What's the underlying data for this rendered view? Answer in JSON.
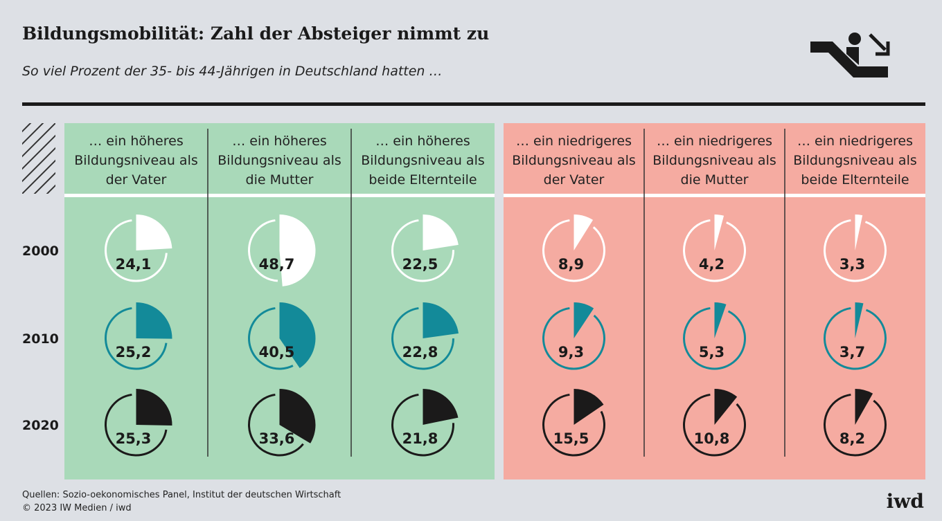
{
  "title": "Bildungsmobilität: Zahl der Absteiger nimmt zu",
  "subtitle": "So viel Prozent der 35- bis 44-Jährigen in Deutschland hatten …",
  "chart_data": {
    "type": "pie",
    "categories": [
      "… ein höheres Bildungsniveau als der Vater",
      "… ein höheres Bildungsniveau als die Mutter",
      "… ein höheres Bildungsniveau als beide Elternteile",
      "… ein niedrigeres Bildungsniveau als der Vater",
      "… ein niedrigeres Bildungsniveau als die Mutter",
      "… ein niedrigeres Bildungsniveau als beide Elternteile"
    ],
    "category_colors": [
      "#a9d9b9",
      "#a9d9b9",
      "#a9d9b9",
      "#f5aba1",
      "#f5aba1",
      "#f5aba1"
    ],
    "series": [
      {
        "name": "2000",
        "color": "#ffffff",
        "values": [
          24.1,
          48.7,
          22.5,
          8.9,
          4.2,
          3.3
        ],
        "value_labels": [
          "24,1",
          "48,7",
          "22,5",
          "8,9",
          "4,2",
          "3,3"
        ]
      },
      {
        "name": "2010",
        "color": "#138a99",
        "values": [
          25.2,
          40.5,
          22.8,
          9.3,
          5.3,
          3.7
        ],
        "value_labels": [
          "25,2",
          "40,5",
          "22,8",
          "9,3",
          "5,3",
          "3,7"
        ]
      },
      {
        "name": "2020",
        "color": "#1b1a1a",
        "values": [
          25.3,
          33.6,
          21.8,
          15.5,
          10.8,
          8.2
        ],
        "value_labels": [
          "25,3",
          "33,6",
          "21,8",
          "15,5",
          "10,8",
          "8,2"
        ]
      }
    ]
  },
  "footer": {
    "source": "Quellen: Sozio-oekonomisches Panel, Institut der deutschen Wirtschaft",
    "copyright": "© 2023 IW Medien / iwd",
    "logo": "iwd"
  }
}
